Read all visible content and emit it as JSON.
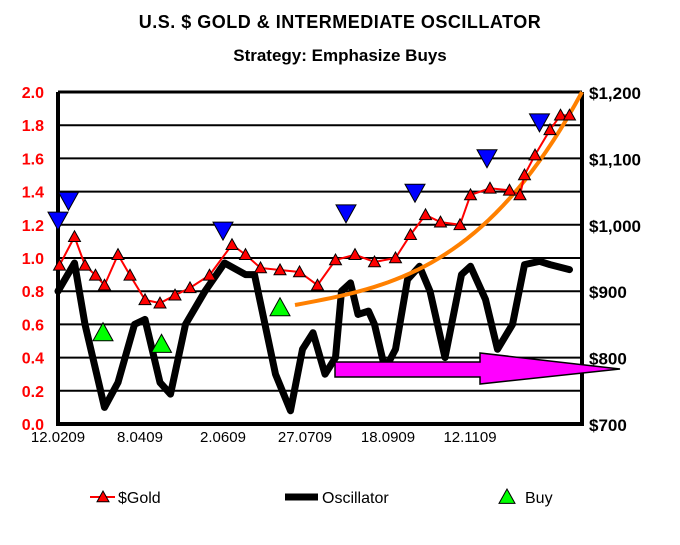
{
  "chart_data": {
    "type": "line",
    "title": "U.S. $ GOLD & INTERMEDIATE OSCILLATOR",
    "subtitle": "Strategy: Emphasize Buys",
    "x_ticks": [
      "12.0209",
      "8.0409",
      "2.0609",
      "27.0709",
      "18.0909",
      "12.1109"
    ],
    "y_left": {
      "range": [
        0,
        2.0
      ],
      "ticks": [
        "0.0",
        "0.2",
        "0.4",
        "0.6",
        "0.8",
        "1.0",
        "1.2",
        "1.4",
        "1.6",
        "1.8",
        "2.0"
      ],
      "color": "#ff0000"
    },
    "y_right": {
      "range": [
        700,
        1200
      ],
      "ticks": [
        "$700",
        "$800",
        "$900",
        "$1,000",
        "$1,100",
        "$1,200"
      ]
    },
    "grid": true,
    "legend_placement": "bottom",
    "legend": [
      "$Gold",
      "Oscillator",
      "Buy"
    ],
    "series": [
      {
        "name": "$Gold",
        "axis": "right",
        "color": "#ff0000",
        "marker": "triangle-up",
        "points": [
          [
            "2009-02-13",
            939
          ],
          [
            "2009-02-23",
            982
          ],
          [
            "2009-03-02",
            939
          ],
          [
            "2009-03-09",
            924
          ],
          [
            "2009-03-15",
            909
          ],
          [
            "2009-03-24",
            955
          ],
          [
            "2009-04-01",
            924
          ],
          [
            "2009-04-11",
            887
          ],
          [
            "2009-04-21",
            882
          ],
          [
            "2009-05-01",
            894
          ],
          [
            "2009-05-11",
            905
          ],
          [
            "2009-05-24",
            924
          ],
          [
            "2009-06-08",
            970
          ],
          [
            "2009-06-17",
            955
          ],
          [
            "2009-06-27",
            935
          ],
          [
            "2009-07-10",
            932
          ],
          [
            "2009-07-23",
            929
          ],
          [
            "2009-08-04",
            909
          ],
          [
            "2009-08-16",
            947
          ],
          [
            "2009-08-29",
            955
          ],
          [
            "2009-09-11",
            944
          ],
          [
            "2009-09-25",
            950
          ],
          [
            "2009-10-05",
            985
          ],
          [
            "2009-10-15",
            1015
          ],
          [
            "2009-10-25",
            1004
          ],
          [
            "2009-11-07",
            1000
          ],
          [
            "2009-11-14",
            1045
          ],
          [
            "2009-11-27",
            1055
          ],
          [
            "2009-12-10",
            1052
          ],
          [
            "2009-12-17",
            1045
          ],
          [
            "2009-12-20",
            1075
          ],
          [
            "2009-12-27",
            1105
          ],
          [
            "2010-01-06",
            1143
          ],
          [
            "2010-01-13",
            1165
          ],
          [
            "2010-01-19",
            1165
          ]
        ]
      },
      {
        "name": "Oscillator",
        "axis": "left",
        "color": "#000000",
        "points": [
          [
            "2009-02-12",
            0.8
          ],
          [
            "2009-02-23",
            0.97
          ],
          [
            "2009-03-02",
            0.6
          ],
          [
            "2009-03-15",
            0.1
          ],
          [
            "2009-03-24",
            0.25
          ],
          [
            "2009-04-04",
            0.6
          ],
          [
            "2009-04-11",
            0.63
          ],
          [
            "2009-04-21",
            0.25
          ],
          [
            "2009-04-28",
            0.18
          ],
          [
            "2009-05-08",
            0.6
          ],
          [
            "2009-05-21",
            0.8
          ],
          [
            "2009-06-03",
            0.97
          ],
          [
            "2009-06-17",
            0.9
          ],
          [
            "2009-06-23",
            0.9
          ],
          [
            "2009-07-07",
            0.3
          ],
          [
            "2009-07-17",
            0.08
          ],
          [
            "2009-07-25",
            0.45
          ],
          [
            "2009-08-01",
            0.55
          ],
          [
            "2009-08-09",
            0.3
          ],
          [
            "2009-08-16",
            0.4
          ],
          [
            "2009-08-20",
            0.8
          ],
          [
            "2009-08-26",
            0.85
          ],
          [
            "2009-08-31",
            0.66
          ],
          [
            "2009-09-07",
            0.68
          ],
          [
            "2009-09-11",
            0.6
          ],
          [
            "2009-09-18",
            0.33
          ],
          [
            "2009-09-25",
            0.45
          ],
          [
            "2009-10-03",
            0.87
          ],
          [
            "2009-10-11",
            0.95
          ],
          [
            "2009-10-18",
            0.8
          ],
          [
            "2009-10-28",
            0.4
          ],
          [
            "2009-11-08",
            0.9
          ],
          [
            "2009-11-14",
            0.95
          ],
          [
            "2009-11-24",
            0.75
          ],
          [
            "2009-12-02",
            0.45
          ],
          [
            "2009-12-12",
            0.6
          ],
          [
            "2009-12-20",
            0.96
          ],
          [
            "2009-12-30",
            0.98
          ],
          [
            "2010-01-06",
            0.96
          ],
          [
            "2010-01-19",
            0.93
          ]
        ]
      },
      {
        "name": "Buy",
        "axis": "left",
        "color": "#00ff00",
        "marker": "triangle-up",
        "points": [
          [
            "2009-03-14",
            0.55
          ],
          [
            "2009-04-22",
            0.48
          ],
          [
            "2009-07-10",
            0.7
          ]
        ]
      },
      {
        "axis": "right",
        "color": "#0000ff",
        "marker": "triangle-down",
        "points": [
          [
            "2009-02-12",
            1007
          ],
          [
            "2009-02-19",
            1037
          ],
          [
            "2009-06-02",
            992
          ],
          [
            "2009-08-23",
            1018
          ],
          [
            "2009-10-08",
            1049
          ],
          [
            "2009-11-25",
            1101
          ],
          [
            "2009-12-30",
            1155
          ]
        ]
      }
    ],
    "annotations": {
      "trend_curve_color": "#ff8000",
      "arrow_color": "#ff00ff"
    }
  }
}
